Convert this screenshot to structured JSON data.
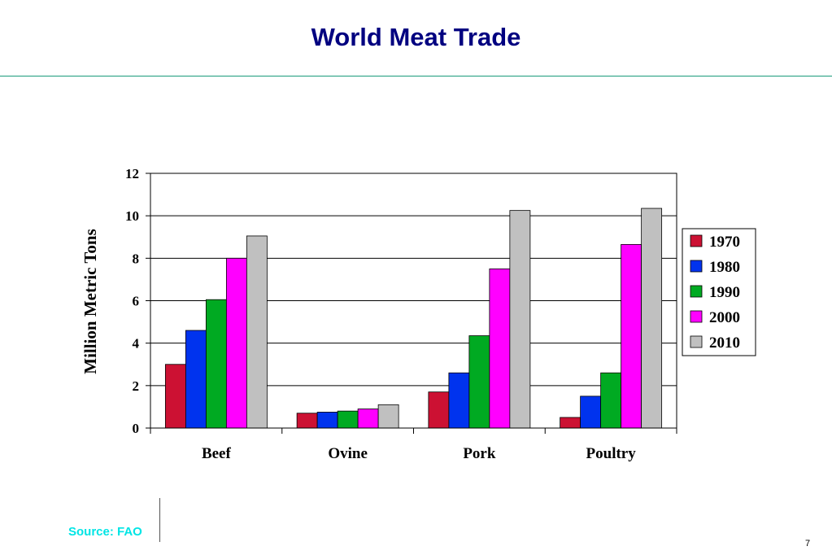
{
  "slide": {
    "title": "World Meat Trade",
    "source": "Source: FAO",
    "page_number": "7"
  },
  "chart_data": {
    "type": "bar",
    "title": "",
    "xlabel": "",
    "ylabel": "Million Metric Tons",
    "categories": [
      "Beef",
      "Ovine",
      "Pork",
      "Poultry"
    ],
    "ylim": [
      0,
      12
    ],
    "yticks": [
      0,
      2,
      4,
      6,
      8,
      10,
      12
    ],
    "grid": true,
    "legend_position": "right",
    "series": [
      {
        "name": "1970",
        "color": "#cc1133",
        "values": [
          3.0,
          0.7,
          1.7,
          0.5
        ]
      },
      {
        "name": "1980",
        "color": "#0033ee",
        "values": [
          4.6,
          0.75,
          2.6,
          1.5
        ]
      },
      {
        "name": "1990",
        "color": "#00aa22",
        "values": [
          6.05,
          0.8,
          4.35,
          2.6
        ]
      },
      {
        "name": "2000",
        "color": "#ff00ff",
        "values": [
          8.0,
          0.9,
          7.5,
          8.65
        ]
      },
      {
        "name": "2010",
        "color": "#c0c0c0",
        "values": [
          9.05,
          1.1,
          10.25,
          10.35
        ]
      }
    ]
  }
}
